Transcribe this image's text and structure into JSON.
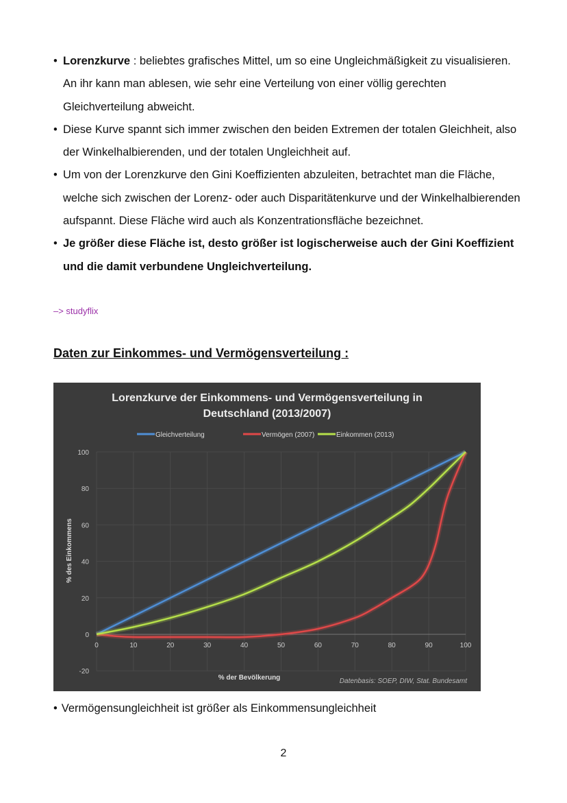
{
  "bullets": [
    {
      "bold": "Lorenzkurve",
      "text": " : beliebtes grafisches Mittel, um so eine Ungleichmäßigkeit zu visualisieren. An ihr kann man ablesen, wie sehr eine Verteilung von einer völlig gerechten Gleichverteilung abweicht."
    },
    {
      "text": "Diese Kurve spannt sich immer zwischen den beiden Extremen der totalen Gleichheit, also der Winkelhalbierenden, und der totalen Ungleichheit auf."
    },
    {
      "text": "Um von der Lorenzkurve den Gini Koeffizienten abzuleiten, betrachtet man die Fläche, welche sich zwischen der Lorenz- oder auch Disparitätenkurve und der Winkelhalbierenden aufspannt. Diese Fläche wird auch als Konzentrationsfläche bezeichnet."
    },
    {
      "bold": "Je größer diese Fläche ist, desto größer ist logischerweise auch der Gini Koeffizient und die damit verbundene Ungleichverteilung."
    }
  ],
  "source_note": "–> studyflix",
  "section_heading": "Daten zur Einkommes- und Vermögensverteilung :",
  "after_chart_bullet": "Vermögensungleichheit ist größer als Einkommensungleichheit",
  "page_number": "2",
  "chart_data": {
    "type": "line",
    "title_line1": "Lorenzkurve der Einkommens- und Vermögensverteilung in",
    "title_line2": "Deutschland (2013/2007)",
    "xlabel": "% der Bevölkerung",
    "ylabel": "% des Einkommens",
    "annotation": "Datenbasis: SOEP, DIW, Stat. Bundesamt",
    "xlim": [
      0,
      100
    ],
    "ylim": [
      -20,
      100
    ],
    "xticks": [
      "0",
      "10",
      "20",
      "30",
      "40",
      "50",
      "60",
      "70",
      "80",
      "90",
      "100"
    ],
    "yticks": [
      "100",
      "80",
      "60",
      "40",
      "20",
      "0",
      "-20"
    ],
    "grid": true,
    "legend_position": "top",
    "background": "#3b3b3b",
    "series": [
      {
        "name": "Gleichverteilung",
        "color": "#4f8fd6",
        "x": [
          0,
          100
        ],
        "y": [
          0,
          100
        ]
      },
      {
        "name": "Vermögen (2007)",
        "color": "#e04848",
        "x": [
          0,
          5,
          10,
          20,
          30,
          40,
          50,
          60,
          70,
          75,
          80,
          85,
          88,
          90,
          92,
          95,
          100
        ],
        "y": [
          0,
          -1,
          -1.5,
          -1.5,
          -1.5,
          -1.5,
          0,
          3,
          9,
          14,
          20,
          26,
          31,
          38,
          50,
          75,
          100
        ]
      },
      {
        "name": "Einkommen (2013)",
        "color": "#b6e04a",
        "x": [
          0,
          10,
          20,
          30,
          40,
          50,
          60,
          70,
          80,
          85,
          90,
          95,
          100
        ],
        "y": [
          0,
          4,
          9,
          15,
          22,
          31,
          40,
          51,
          64,
          71,
          80,
          90,
          100
        ]
      }
    ]
  }
}
